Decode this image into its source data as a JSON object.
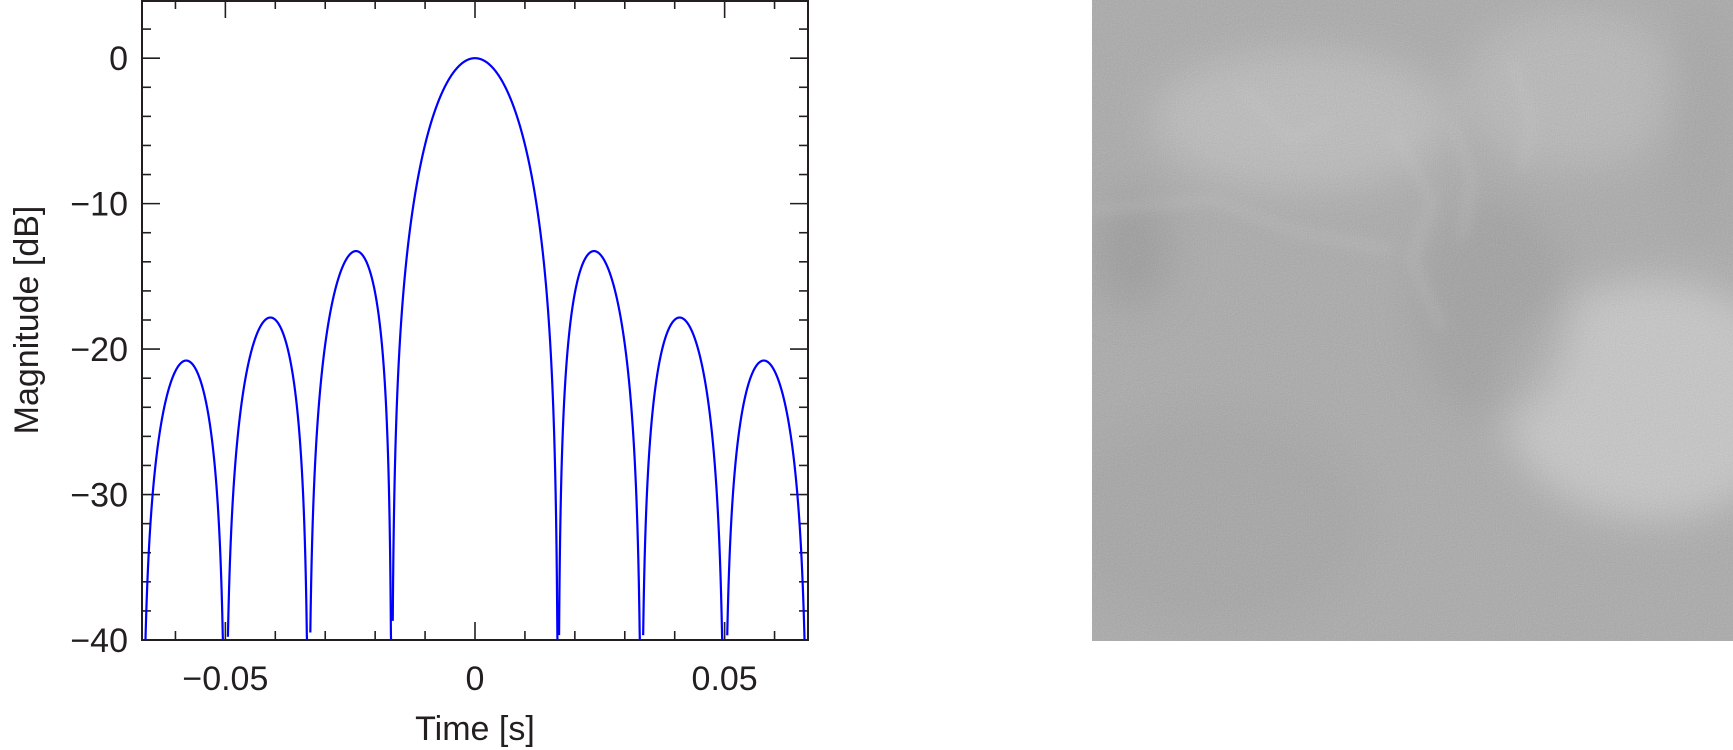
{
  "chart_data": {
    "type": "line",
    "title": "",
    "xlabel": "Time [s]",
    "ylabel": "Magnitude [dB]",
    "xlim": [
      -0.0667,
      0.0667
    ],
    "ylim": [
      -40,
      4
    ],
    "xticks": [
      -0.05,
      0,
      0.05
    ],
    "xtick_labels": [
      "−0.05",
      "0",
      "0.05"
    ],
    "yticks": [
      0,
      -10,
      -20,
      -30,
      -40
    ],
    "ytick_labels": [
      "0",
      "−10",
      "−20",
      "−30",
      "−40"
    ],
    "grid": false,
    "minor_ticks": true,
    "series": [
      {
        "color": "#0000ff",
        "model": "sinc squared, null spacing 0.0167 s",
        "lobe_peaks": [
          {
            "x": -0.0478,
            "y": -20.8
          },
          {
            "x": -0.0398,
            "y": -17.8
          },
          {
            "x": -0.0239,
            "y": -13.3
          },
          {
            "x": 0,
            "y": 0
          },
          {
            "x": 0.0239,
            "y": -13.3
          },
          {
            "x": 0.0398,
            "y": -17.8
          },
          {
            "x": 0.0478,
            "y": -20.8
          }
        ],
        "nulls": [
          -0.05,
          -0.0333,
          -0.0167,
          0.0167,
          0.0333,
          0.05
        ]
      }
    ]
  },
  "image_panel": {
    "description_icon": "sar-grayscale-image"
  }
}
